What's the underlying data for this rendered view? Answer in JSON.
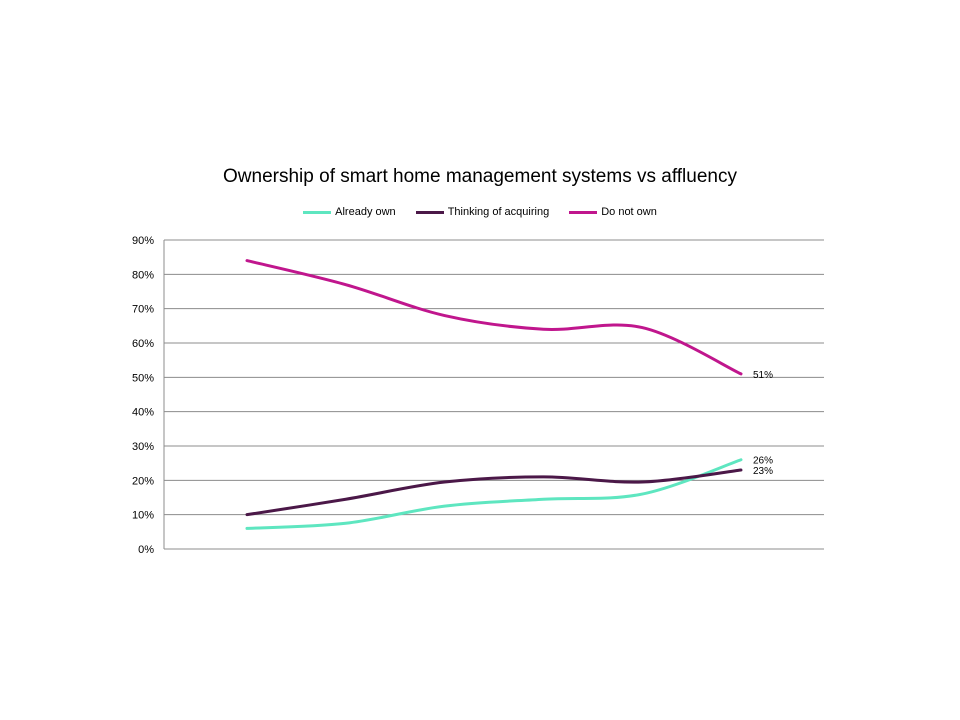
{
  "chart_data": {
    "type": "line",
    "title": "Ownership of smart home management systems vs affluency",
    "xlabel": "",
    "ylabel": "",
    "ylim": [
      0,
      90
    ],
    "yticks": [
      "0%",
      "10%",
      "20%",
      "30%",
      "40%",
      "50%",
      "60%",
      "70%",
      "80%",
      "90%"
    ],
    "categories": [
      "",
      "",
      "",
      "",
      "",
      ""
    ],
    "grid": true,
    "legend_position": "top",
    "series": [
      {
        "name": "Already own",
        "color": "#5ee6c0",
        "values": [
          6,
          7.5,
          12.5,
          14.5,
          16,
          26
        ],
        "end_label": "26%"
      },
      {
        "name": "Thinking of acquiring",
        "color": "#4b1848",
        "values": [
          10,
          14.5,
          19.5,
          21,
          19.5,
          23
        ],
        "end_label": "23%"
      },
      {
        "name": "Do not own",
        "color": "#c0168d",
        "values": [
          84,
          77,
          68,
          64,
          64.5,
          51
        ],
        "end_label": "51%"
      }
    ]
  }
}
